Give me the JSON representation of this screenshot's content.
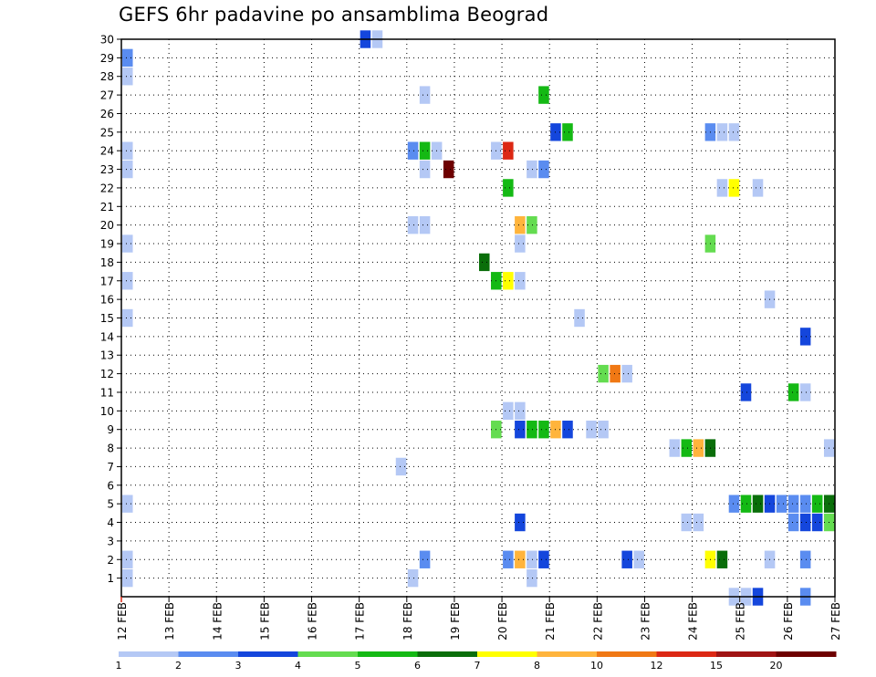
{
  "chart_data": {
    "type": "heatmap",
    "title": "GEFS 6hr padavine po ansamblima Beograd",
    "x_ticks": [
      "12 FEB",
      "13 FEB",
      "14 FEB",
      "15 FEB",
      "16 FEB",
      "17 FEB",
      "18 FEB",
      "19 FEB",
      "20 FEB",
      "21 FEB",
      "22 FEB",
      "23 FEB",
      "24 FEB",
      "25 FEB",
      "26 FEB",
      "27 FEB"
    ],
    "y_ticks": [
      1,
      2,
      3,
      4,
      5,
      6,
      7,
      8,
      9,
      10,
      11,
      12,
      13,
      14,
      15,
      16,
      17,
      18,
      19,
      20,
      21,
      22,
      23,
      24,
      25,
      26,
      27,
      28,
      29,
      30
    ],
    "x_range_days": [
      12,
      27
    ],
    "y_range": [
      0,
      30
    ],
    "grid": "dotted",
    "colorbar": {
      "labels": [
        "1",
        "2",
        "3",
        "4",
        "5",
        "6",
        "7",
        "8",
        "10",
        "12",
        "15",
        "20"
      ],
      "colors": [
        "#b4c8f5",
        "#5a8cf0",
        "#1446dc",
        "#64dc50",
        "#14b914",
        "#0a6e0a",
        "#ffff00",
        "#ffb43c",
        "#f07814",
        "#dc2814",
        "#a01414",
        "#6e0000"
      ]
    },
    "cells": [
      {
        "day": 12.0,
        "m": 29,
        "c": 1
      },
      {
        "day": 12.0,
        "m": 28,
        "c": 0
      },
      {
        "day": 12.0,
        "m": 24,
        "c": 0
      },
      {
        "day": 12.0,
        "m": 23,
        "c": 0
      },
      {
        "day": 12.0,
        "m": 19,
        "c": 0
      },
      {
        "day": 12.0,
        "m": 17,
        "c": 0
      },
      {
        "day": 12.0,
        "m": 15,
        "c": 0
      },
      {
        "day": 12.0,
        "m": 5,
        "c": 0
      },
      {
        "day": 12.0,
        "m": 2,
        "c": 0
      },
      {
        "day": 12.0,
        "m": 1,
        "c": 0
      },
      {
        "day": 17.0,
        "m": 30,
        "c": 2
      },
      {
        "day": 17.25,
        "m": 30,
        "c": 0
      },
      {
        "day": 17.75,
        "m": 7,
        "c": 0
      },
      {
        "day": 18.0,
        "m": 24,
        "c": 1
      },
      {
        "day": 18.25,
        "m": 24,
        "c": 4
      },
      {
        "day": 18.5,
        "m": 24,
        "c": 0
      },
      {
        "day": 18.0,
        "m": 20,
        "c": 0
      },
      {
        "day": 18.25,
        "m": 20,
        "c": 0
      },
      {
        "day": 18.25,
        "m": 27,
        "c": 0
      },
      {
        "day": 18.25,
        "m": 23,
        "c": 0
      },
      {
        "day": 18.75,
        "m": 23,
        "c": 11
      },
      {
        "day": 18.25,
        "m": 2,
        "c": 1
      },
      {
        "day": 18.0,
        "m": 1,
        "c": 0
      },
      {
        "day": 19.5,
        "m": 18,
        "c": 5
      },
      {
        "day": 19.75,
        "m": 24,
        "c": 0
      },
      {
        "day": 20.0,
        "m": 24,
        "c": 9
      },
      {
        "day": 20.0,
        "m": 22,
        "c": 4
      },
      {
        "day": 20.25,
        "m": 20,
        "c": 7
      },
      {
        "day": 20.5,
        "m": 20,
        "c": 3
      },
      {
        "day": 20.25,
        "m": 19,
        "c": 0
      },
      {
        "day": 19.75,
        "m": 17,
        "c": 4
      },
      {
        "day": 20.0,
        "m": 17,
        "c": 6
      },
      {
        "day": 20.25,
        "m": 17,
        "c": 0
      },
      {
        "day": 20.0,
        "m": 10,
        "c": 0
      },
      {
        "day": 20.25,
        "m": 10,
        "c": 0
      },
      {
        "day": 19.75,
        "m": 9,
        "c": 3
      },
      {
        "day": 20.25,
        "m": 9,
        "c": 2
      },
      {
        "day": 20.5,
        "m": 9,
        "c": 4
      },
      {
        "day": 20.75,
        "m": 9,
        "c": 4
      },
      {
        "day": 21.0,
        "m": 9,
        "c": 7
      },
      {
        "day": 21.25,
        "m": 9,
        "c": 2
      },
      {
        "day": 20.25,
        "m": 4,
        "c": 2
      },
      {
        "day": 20.0,
        "m": 2,
        "c": 1
      },
      {
        "day": 20.25,
        "m": 2,
        "c": 7
      },
      {
        "day": 20.5,
        "m": 2,
        "c": 0
      },
      {
        "day": 20.75,
        "m": 2,
        "c": 2
      },
      {
        "day": 20.5,
        "m": 1,
        "c": 0
      },
      {
        "day": 20.5,
        "m": 23,
        "c": 0
      },
      {
        "day": 20.75,
        "m": 23,
        "c": 1
      },
      {
        "day": 20.75,
        "m": 27,
        "c": 4
      },
      {
        "day": 21.0,
        "m": 25,
        "c": 2
      },
      {
        "day": 21.25,
        "m": 25,
        "c": 4
      },
      {
        "day": 21.5,
        "m": 15,
        "c": 0
      },
      {
        "day": 21.75,
        "m": 9,
        "c": 0
      },
      {
        "day": 22.0,
        "m": 9,
        "c": 0
      },
      {
        "day": 22.0,
        "m": 12,
        "c": 3
      },
      {
        "day": 22.25,
        "m": 12,
        "c": 8
      },
      {
        "day": 22.5,
        "m": 12,
        "c": 0
      },
      {
        "day": 22.5,
        "m": 2,
        "c": 2
      },
      {
        "day": 22.75,
        "m": 2,
        "c": 0
      },
      {
        "day": 23.5,
        "m": 8,
        "c": 0
      },
      {
        "day": 23.75,
        "m": 8,
        "c": 4
      },
      {
        "day": 24.0,
        "m": 8,
        "c": 7
      },
      {
        "day": 24.25,
        "m": 8,
        "c": 5
      },
      {
        "day": 23.75,
        "m": 4,
        "c": 0
      },
      {
        "day": 24.0,
        "m": 4,
        "c": 0
      },
      {
        "day": 24.25,
        "m": 2,
        "c": 6
      },
      {
        "day": 24.5,
        "m": 2,
        "c": 5
      },
      {
        "day": 24.25,
        "m": 25,
        "c": 1
      },
      {
        "day": 24.5,
        "m": 25,
        "c": 0
      },
      {
        "day": 24.75,
        "m": 25,
        "c": 0
      },
      {
        "day": 24.25,
        "m": 19,
        "c": 3
      },
      {
        "day": 24.5,
        "m": 22,
        "c": 0
      },
      {
        "day": 24.75,
        "m": 22,
        "c": 6
      },
      {
        "day": 25.25,
        "m": 22,
        "c": 0
      },
      {
        "day": 25.0,
        "m": 11,
        "c": 2
      },
      {
        "day": 24.75,
        "m": 5,
        "c": 1
      },
      {
        "day": 25.0,
        "m": 5,
        "c": 4
      },
      {
        "day": 25.25,
        "m": 5,
        "c": 5
      },
      {
        "day": 25.5,
        "m": 5,
        "c": 2
      },
      {
        "day": 25.75,
        "m": 5,
        "c": 1
      },
      {
        "day": 26.0,
        "m": 5,
        "c": 1
      },
      {
        "day": 26.25,
        "m": 5,
        "c": 1
      },
      {
        "day": 26.5,
        "m": 5,
        "c": 4
      },
      {
        "day": 26.75,
        "m": 5,
        "c": 5
      },
      {
        "day": 26.0,
        "m": 4,
        "c": 1
      },
      {
        "day": 26.25,
        "m": 4,
        "c": 2
      },
      {
        "day": 26.5,
        "m": 4,
        "c": 2
      },
      {
        "day": 26.75,
        "m": 4,
        "c": 3
      },
      {
        "day": 25.5,
        "m": 16,
        "c": 0
      },
      {
        "day": 25.5,
        "m": 2,
        "c": 0
      },
      {
        "day": 26.0,
        "m": 11,
        "c": 4
      },
      {
        "day": 26.25,
        "m": 11,
        "c": 0
      },
      {
        "day": 26.25,
        "m": 14,
        "c": 2
      },
      {
        "day": 26.25,
        "m": 2,
        "c": 1
      },
      {
        "day": 26.75,
        "m": 8,
        "c": 0
      },
      {
        "day": 24.75,
        "m": 0,
        "c": 0
      },
      {
        "day": 25.0,
        "m": 0,
        "c": 0
      },
      {
        "day": 25.25,
        "m": 0,
        "c": 2
      },
      {
        "day": 26.25,
        "m": 0,
        "c": 1
      }
    ]
  }
}
